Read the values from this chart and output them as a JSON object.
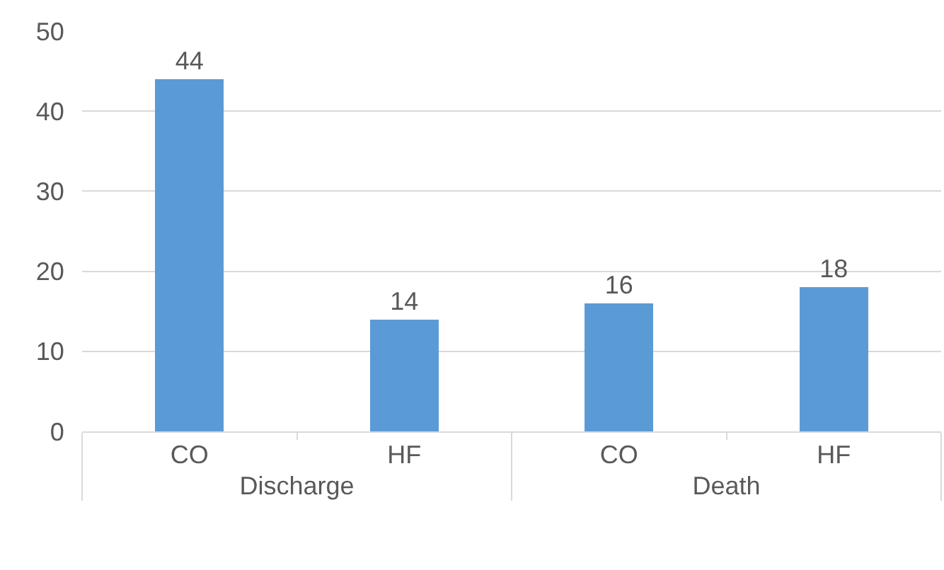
{
  "chart_data": {
    "type": "bar",
    "categories": [
      "CO",
      "HF",
      "CO",
      "HF"
    ],
    "values": [
      44,
      14,
      16,
      18
    ],
    "color": "#5b9bd5",
    "data_labels": true,
    "ylim": [
      0,
      50
    ],
    "yticks": [
      0,
      10,
      20,
      30,
      40,
      50
    ],
    "grid": "y",
    "legend": false,
    "annotations": [
      "Discharge",
      "Death"
    ]
  }
}
